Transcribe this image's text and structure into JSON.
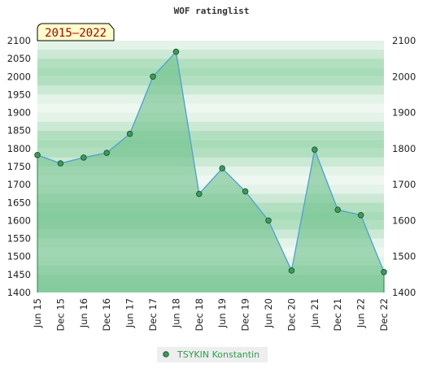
{
  "chart_data": {
    "type": "area",
    "title": "WOF ratinglist",
    "period_label": "2015–2022",
    "categories": [
      "Jun 15",
      "Dec 15",
      "Jun 16",
      "Dec 16",
      "Jun 17",
      "Dec 17",
      "Jun 18",
      "Dec 18",
      "Jun 19",
      "Dec 19",
      "Jun 20",
      "Dec 20",
      "Jun 21",
      "Dec 21",
      "Jun 22",
      "Dec 22"
    ],
    "series": [
      {
        "name": "TSYKIN Konstantin",
        "values": [
          1782,
          1759,
          1775,
          1788,
          1841,
          2000,
          2069,
          1674,
          1745,
          1681,
          1600,
          1461,
          1797,
          1630,
          1615,
          1457
        ]
      }
    ],
    "ylim": [
      1400,
      2100
    ],
    "yticks_left": [
      1400,
      1450,
      1500,
      1550,
      1600,
      1650,
      1700,
      1750,
      1800,
      1850,
      1900,
      1950,
      2000,
      2050,
      2100
    ],
    "yticks_right": [
      1400,
      1500,
      1600,
      1700,
      1800,
      1900,
      2000,
      2100
    ],
    "grid": "horizontal bands",
    "legend_position": "bottom-center",
    "colors": {
      "line": "#4f9fd6",
      "fill": "#6cc08a",
      "marker": "#3d9a5a",
      "band_dark": "#a8dbb8",
      "band_light": "#eef7f0",
      "badge_bg": "#ffffcc",
      "badge_text": "#b00000"
    }
  }
}
